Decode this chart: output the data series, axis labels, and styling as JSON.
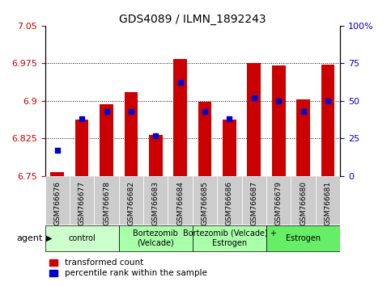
{
  "title": "GDS4089 / ILMN_1892243",
  "samples": [
    "GSM766676",
    "GSM766677",
    "GSM766678",
    "GSM766682",
    "GSM766683",
    "GSM766684",
    "GSM766685",
    "GSM766686",
    "GSM766687",
    "GSM766679",
    "GSM766680",
    "GSM766681"
  ],
  "red_values": [
    6.757,
    6.862,
    6.893,
    6.918,
    6.832,
    6.984,
    6.898,
    6.862,
    6.975,
    6.97,
    6.903,
    6.972
  ],
  "blue_values": [
    0.17,
    0.38,
    0.43,
    0.43,
    0.27,
    0.62,
    0.43,
    0.38,
    0.52,
    0.5,
    0.43,
    0.5
  ],
  "ymin": 6.75,
  "ymax": 7.05,
  "yticks_left": [
    6.75,
    6.825,
    6.9,
    6.975,
    7.05
  ],
  "yticks_right_vals": [
    0,
    25,
    50,
    75,
    100
  ],
  "yticks_right_labels": [
    "0",
    "25",
    "50",
    "75",
    "100%"
  ],
  "groups": [
    {
      "label": "control",
      "start": 0,
      "end": 2,
      "color": "#ccffcc"
    },
    {
      "label": "Bortezomib\n(Velcade)",
      "start": 3,
      "end": 5,
      "color": "#aaffaa"
    },
    {
      "label": "Bortezomib (Velcade) +\nEstrogen",
      "start": 6,
      "end": 8,
      "color": "#aaffaa"
    },
    {
      "label": "Estrogen",
      "start": 9,
      "end": 11,
      "color": "#66ee66"
    }
  ],
  "bar_color_red": "#cc0000",
  "bar_color_blue": "#0000cc",
  "bar_width": 0.55,
  "legend_red": "transformed count",
  "legend_blue": "percentile rank within the sample",
  "xlabel_agent": "agent",
  "left_axis_color": "#cc0000",
  "right_axis_color": "#0000bb",
  "grid_color": "#000000",
  "tick_label_bg": "#cccccc"
}
